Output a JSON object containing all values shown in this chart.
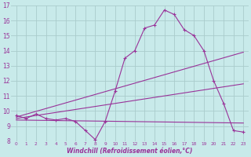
{
  "bg_color": "#c8eaea",
  "line_color": "#993399",
  "grid_color": "#aacccc",
  "xlabel": "Windchill (Refroidissement éolien,°C)",
  "xlim": [
    -0.5,
    23.5
  ],
  "ylim": [
    8,
    17
  ],
  "yticks": [
    8,
    9,
    10,
    11,
    12,
    13,
    14,
    15,
    16,
    17
  ],
  "xticks": [
    0,
    1,
    2,
    3,
    4,
    5,
    6,
    7,
    8,
    9,
    10,
    11,
    12,
    13,
    14,
    15,
    16,
    17,
    18,
    19,
    20,
    21,
    22,
    23
  ],
  "series1_x": [
    0,
    1,
    2,
    3,
    4,
    5,
    6,
    7,
    8,
    9,
    10,
    11,
    12,
    13,
    14,
    15,
    16,
    17,
    18,
    19,
    20,
    21,
    22,
    23
  ],
  "series1_y": [
    9.7,
    9.5,
    9.8,
    9.5,
    9.4,
    9.5,
    9.3,
    8.7,
    8.1,
    9.3,
    11.3,
    13.5,
    14.0,
    15.5,
    15.7,
    16.7,
    16.4,
    15.4,
    15.0,
    14.0,
    12.0,
    10.5,
    8.7,
    8.6
  ],
  "series2_x": [
    0,
    23
  ],
  "series2_y": [
    9.6,
    13.9
  ],
  "series3_x": [
    0,
    23
  ],
  "series3_y": [
    9.4,
    9.2
  ],
  "series4_x": [
    0,
    23
  ],
  "series4_y": [
    9.5,
    11.8
  ]
}
